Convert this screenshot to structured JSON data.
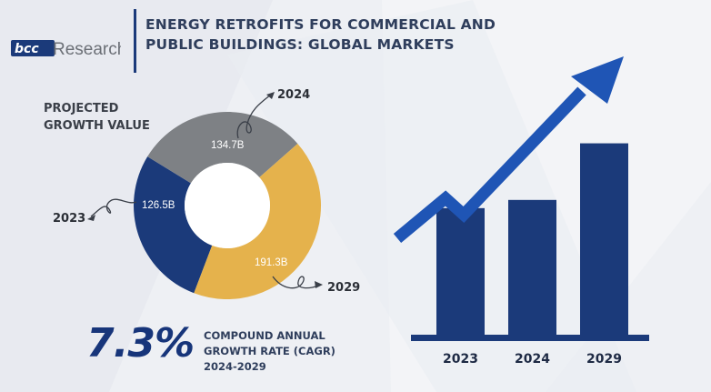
{
  "header": {
    "logo_text": "bccResearch",
    "title_line1": "ENERGY RETROFITS FOR COMMERCIAL AND",
    "title_line2": "PUBLIC BUILDINGS: GLOBAL MARKETS"
  },
  "donut_heading": {
    "line1": "PROJECTED",
    "line2": "GROWTH VALUE"
  },
  "cagr": {
    "value": "7.3%",
    "line1": "COMPOUND ANNUAL",
    "line2": "GROWTH RATE (CAGR)",
    "line3": "2024-2029"
  },
  "colors": {
    "navy": "#1b3a7a",
    "gray": "#7e8185",
    "gold": "#e5b24c",
    "arrow": "#1f55b5",
    "text_dark": "#2f3e5c"
  },
  "chart_data": [
    {
      "type": "pie",
      "subtype": "donut",
      "title": "PROJECTED GROWTH VALUE",
      "categories": [
        "2023",
        "2024",
        "2029"
      ],
      "values": [
        126.5,
        134.7,
        191.3
      ],
      "value_labels": [
        "126.5B",
        "134.7B",
        "191.3B"
      ],
      "colors": [
        "#1b3a7a",
        "#7e8185",
        "#e5b24c"
      ]
    },
    {
      "type": "bar",
      "categories": [
        "2023",
        "2024",
        "2029"
      ],
      "values": [
        126.5,
        134.7,
        191.3
      ],
      "ylim": [
        0,
        200
      ],
      "trend_arrow": "upward",
      "grid": false
    }
  ]
}
